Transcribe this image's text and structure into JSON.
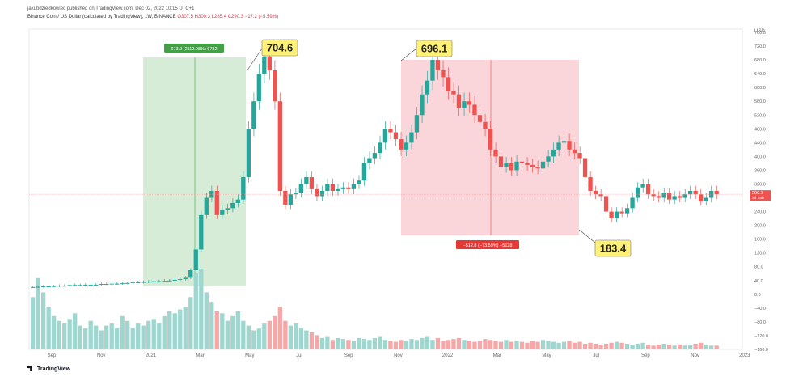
{
  "header": {
    "publisher": "jakubdziedkowiec published on TradingView.com, Dec 02, 2022 10:15 UTC+1",
    "symbol": "Binance Coin / US Dollar (calculated by TradingView), 1W, BINANCE",
    "ohlc": "O307.5 H309.3 L285.4 C290.3 −17.2 (−5.59%)"
  },
  "footer": {
    "brand": "TradingView"
  },
  "colors": {
    "up": "#26a69a",
    "down": "#ef5350",
    "vol_up": "#9fd6cf",
    "vol_down": "#f5a8a7",
    "green_zone": "#c8e6c9",
    "red_zone": "#f8c7cc",
    "label_yellow": "#fff176",
    "green_badge": "#43a047",
    "red_badge": "#e53935",
    "price_line": "#ef9a9a",
    "current_price_tag": "#ef5350"
  },
  "chart_data": {
    "type": "candlestick",
    "title": "Binance Coin / US Dollar (calculated by TradingView), 1W, BINANCE",
    "y_axis": {
      "label": "USD",
      "ticks": [
        "760.0",
        "720.0",
        "680.0",
        "640.0",
        "600.0",
        "560.0",
        "520.0",
        "480.0",
        "440.0",
        "400.0",
        "360.0",
        "320.0",
        "280.0",
        "240.0",
        "200.0",
        "160.0",
        "120.0",
        "80.0",
        "40.0",
        "0.0",
        "−40.0",
        "−80.0",
        "−120.0",
        "−160.0"
      ],
      "ylim": [
        -160,
        760
      ]
    },
    "x_axis": {
      "ticks": [
        "Sep",
        "Nov",
        "2021",
        "Mar",
        "May",
        "Jul",
        "Sep",
        "Nov",
        "2022",
        "Mar",
        "May",
        "Jul",
        "Sep",
        "Nov",
        "2023"
      ]
    },
    "current_price": {
      "value": "290.3",
      "countdown": "3d 15h"
    },
    "price_labels": [
      "704.6",
      "696.1",
      "183.4"
    ],
    "measurements": [
      {
        "label": "673.2 (2112.98%) 6732",
        "color": "green"
      },
      {
        "label": "−512.8 (−73.59%) −5128",
        "color": "red"
      }
    ],
    "candles_note": "weekly OHLC, approx. Aug 2020 – Dec 2022",
    "closes": [
      21,
      22,
      23,
      23,
      24,
      25,
      25,
      27,
      27,
      27,
      28,
      28,
      28,
      30,
      30,
      31,
      31,
      32,
      33,
      35,
      35,
      36,
      37,
      38,
      38,
      39,
      40,
      42,
      44,
      48,
      70,
      130,
      230,
      280,
      300,
      230,
      245,
      250,
      265,
      275,
      340,
      480,
      560,
      640,
      690,
      650,
      560,
      300,
      260,
      290,
      295,
      320,
      340,
      305,
      285,
      300,
      320,
      300,
      305,
      310,
      305,
      320,
      330,
      380,
      395,
      410,
      440,
      480,
      470,
      450,
      420,
      440,
      470,
      520,
      580,
      620,
      680,
      650,
      630,
      590,
      580,
      540,
      560,
      550,
      520,
      500,
      480,
      420,
      400,
      370,
      380,
      360,
      385,
      380,
      375,
      370,
      365,
      385,
      400,
      420,
      440,
      445,
      420,
      410,
      395,
      340,
      300,
      290,
      285,
      240,
      220,
      240,
      235,
      250,
      280,
      310,
      320,
      290,
      285,
      280,
      295,
      275,
      285,
      280,
      290,
      300,
      290,
      270,
      280,
      300,
      290
    ],
    "volumes": [
      55,
      75,
      60,
      45,
      35,
      30,
      28,
      32,
      38,
      25,
      22,
      30,
      25,
      20,
      25,
      28,
      22,
      35,
      30,
      22,
      28,
      25,
      30,
      32,
      28,
      35,
      40,
      38,
      42,
      45,
      55,
      80,
      85,
      60,
      50,
      40,
      38,
      30,
      35,
      40,
      30,
      25,
      20,
      22,
      28,
      30,
      35,
      45,
      30,
      25,
      28,
      22,
      20,
      18,
      15,
      12,
      14,
      10,
      12,
      11,
      10,
      9,
      12,
      11,
      10,
      12,
      14,
      10,
      9,
      8,
      10,
      9,
      11,
      10,
      12,
      14,
      10,
      12,
      9,
      10,
      11,
      12,
      10,
      9,
      8,
      9,
      11,
      10,
      9,
      8,
      10,
      8,
      9,
      8,
      7,
      9,
      8,
      10,
      9,
      8,
      7,
      8,
      9,
      7,
      8,
      6,
      7,
      6,
      5,
      6,
      7,
      8,
      7,
      6,
      5,
      6,
      7,
      5,
      4,
      5,
      6,
      5,
      4,
      5,
      4,
      5,
      6,
      7,
      5,
      4,
      4
    ]
  }
}
